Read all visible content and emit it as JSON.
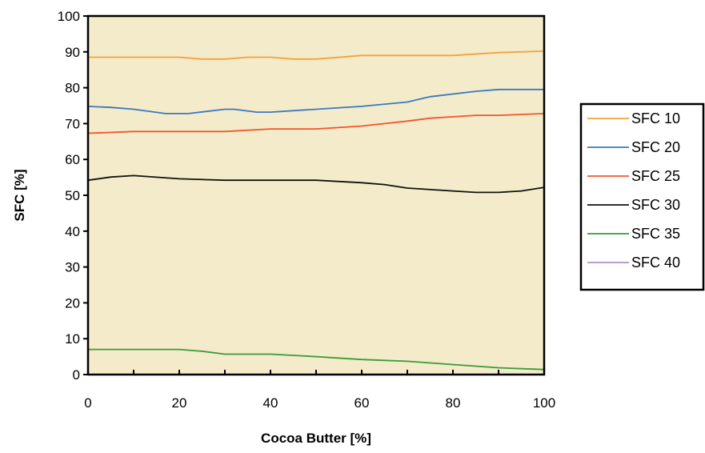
{
  "chart_data": {
    "type": "line",
    "xlabel": "Cocoa Butter  [%]",
    "ylabel": "SFC  [%]",
    "xlim": [
      0,
      100
    ],
    "ylim": [
      0,
      100
    ],
    "xticks": [
      0,
      20,
      40,
      60,
      80,
      100
    ],
    "yticks": [
      0,
      10,
      20,
      30,
      40,
      50,
      60,
      70,
      80,
      90,
      100
    ],
    "grid": false,
    "plot_background": "#f3ebc9",
    "legend_position": "right",
    "series": [
      {
        "name": "SFC 10",
        "color": "#f5a23c",
        "x": [
          0,
          10,
          20,
          25,
          30,
          35,
          40,
          45,
          50,
          60,
          70,
          80,
          90,
          100
        ],
        "y": [
          88.5,
          88.5,
          88.5,
          88,
          88,
          88.5,
          88.5,
          88,
          88,
          89,
          89,
          89,
          89.8,
          90.2
        ]
      },
      {
        "name": "SFC 20",
        "color": "#3a78c2",
        "x": [
          0,
          5,
          10,
          17,
          22,
          30,
          32,
          37,
          40,
          50,
          60,
          70,
          75,
          85,
          90,
          100
        ],
        "y": [
          74.8,
          74.5,
          74,
          72.8,
          72.8,
          74,
          74,
          73.2,
          73.2,
          74,
          74.8,
          76,
          77.5,
          79,
          79.5,
          79.5
        ]
      },
      {
        "name": "SFC 25",
        "color": "#f25530",
        "x": [
          0,
          10,
          20,
          30,
          40,
          50,
          60,
          70,
          75,
          85,
          90,
          100
        ],
        "y": [
          67.3,
          67.8,
          67.8,
          67.8,
          68.5,
          68.5,
          69.3,
          70.7,
          71.5,
          72.3,
          72.3,
          72.8
        ]
      },
      {
        "name": "SFC 30",
        "color": "#111111",
        "x": [
          0,
          5,
          10,
          20,
          30,
          40,
          50,
          60,
          65,
          70,
          80,
          85,
          90,
          95,
          100
        ],
        "y": [
          54.2,
          55.1,
          55.5,
          54.6,
          54.2,
          54.2,
          54.2,
          53.5,
          53,
          52,
          51.2,
          50.8,
          50.8,
          51.2,
          52.2
        ]
      },
      {
        "name": "SFC 35",
        "color": "#3a9a3a",
        "x": [
          0,
          10,
          20,
          25,
          30,
          40,
          50,
          60,
          70,
          80,
          90,
          100
        ],
        "y": [
          7,
          7,
          7,
          6.5,
          5.7,
          5.7,
          5,
          4.2,
          3.7,
          2.8,
          1.9,
          1.4
        ]
      },
      {
        "name": "SFC 40",
        "color": "#b38fbf",
        "x": [],
        "y": []
      }
    ]
  }
}
